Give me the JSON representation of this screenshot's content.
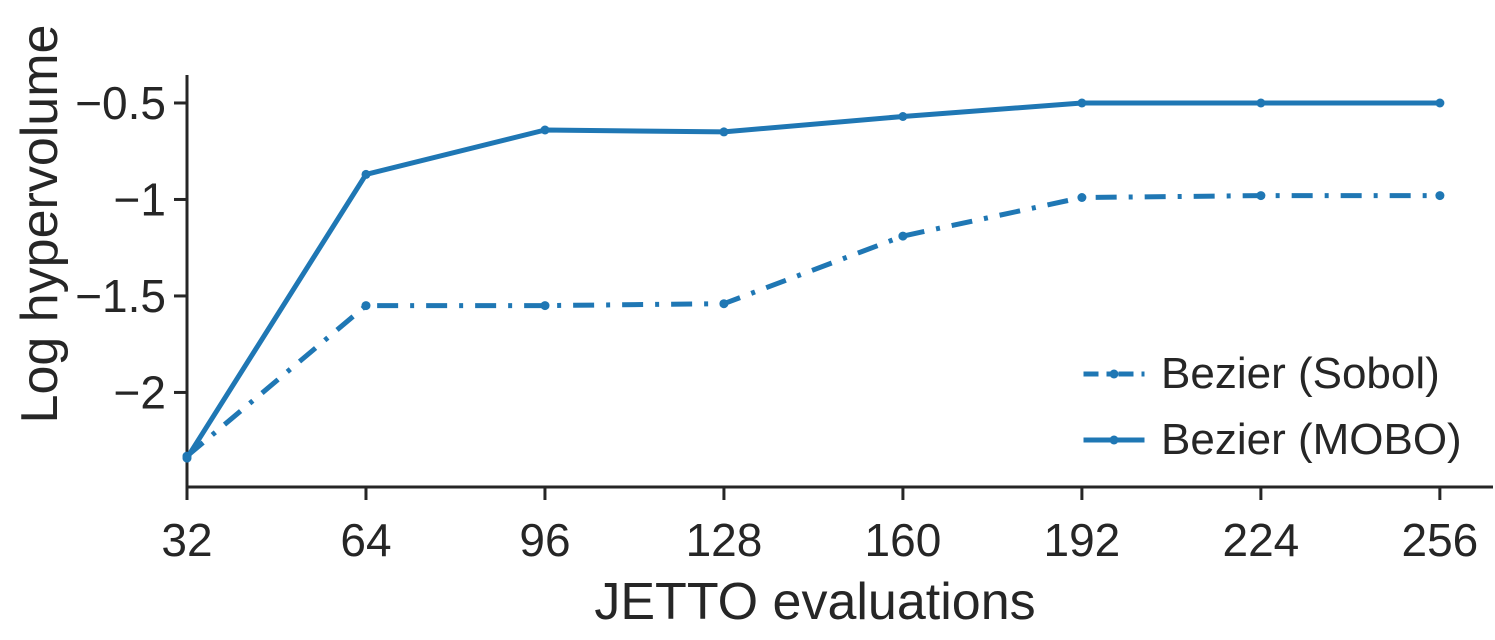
{
  "chart_data": {
    "type": "line",
    "title": "",
    "xlabel": "JETTO evaluations",
    "ylabel": "Log hypervolume",
    "x": [
      32,
      64,
      96,
      128,
      160,
      192,
      224,
      256
    ],
    "series": [
      {
        "name": "Bezier (Sobol)",
        "style": "dashdot",
        "marker": "dot",
        "values": [
          -2.33,
          -1.55,
          -1.55,
          -1.54,
          -1.19,
          -0.99,
          -0.98,
          -0.98
        ]
      },
      {
        "name": "Bezier (MOBO)",
        "style": "solid",
        "marker": "dot",
        "values": [
          -2.34,
          -0.87,
          -0.64,
          -0.65,
          -0.57,
          -0.5,
          -0.5,
          -0.5
        ]
      }
    ],
    "xticks": [
      32,
      64,
      96,
      128,
      160,
      192,
      224,
      256
    ],
    "xtick_labels": [
      "32",
      "64",
      "96",
      "128",
      "160",
      "192",
      "224",
      "256"
    ],
    "yticks": [
      -0.5,
      -1,
      -1.5,
      -2
    ],
    "ytick_labels": [
      "−0.5",
      "−1",
      "−1.5",
      "−2"
    ],
    "xlim": [
      32,
      265.5
    ],
    "ylim": [
      -2.49,
      -0.355
    ],
    "grid": false,
    "legend_position": "lower right",
    "line_color": "#1f77b4",
    "axis_color": "#262626"
  }
}
